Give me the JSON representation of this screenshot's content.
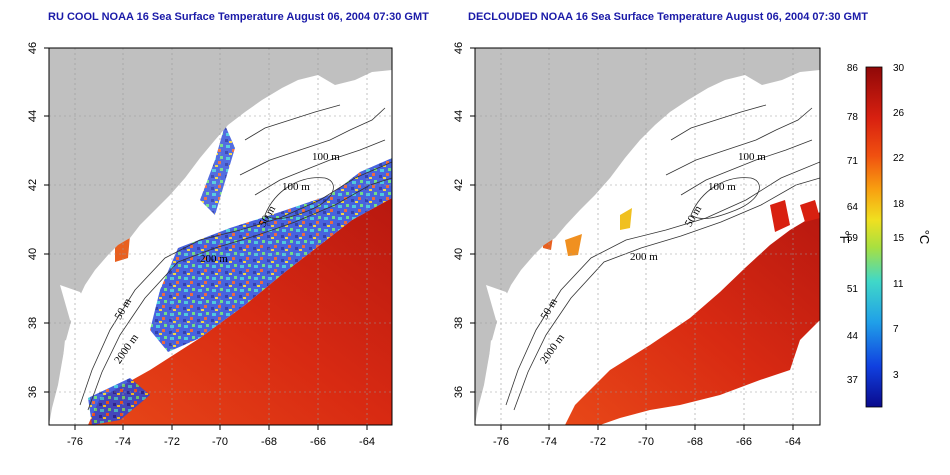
{
  "left_panel": {
    "title": "RU COOL NOAA 16 Sea Surface Temperature August 06, 2004 07:30 GMT"
  },
  "right_panel": {
    "title": "DECLOUDED NOAA 16 Sea Surface Temperature August 06, 2004 07:30 GMT"
  },
  "x_ticks": [
    "-76",
    "-74",
    "-72",
    "-70",
    "-68",
    "-66",
    "-64"
  ],
  "y_ticks": [
    "36",
    "38",
    "40",
    "42",
    "44",
    "46"
  ],
  "contour_labels": [
    "100 m",
    "100 m",
    "50 m",
    "200 m",
    "50 m",
    "2000 m"
  ],
  "colorbar": {
    "f_ticks": [
      "86",
      "78",
      "71",
      "64",
      "59",
      "51",
      "44",
      "37"
    ],
    "c_ticks": [
      "30",
      "26",
      "22",
      "18",
      "15",
      "11",
      "7",
      "3"
    ],
    "f_unit": "°F",
    "c_unit": "°C"
  },
  "colors": {
    "land": "#c0c0c0",
    "title": "#1a1aa8",
    "warm": "#d62a12",
    "cold": "#1030c8"
  }
}
